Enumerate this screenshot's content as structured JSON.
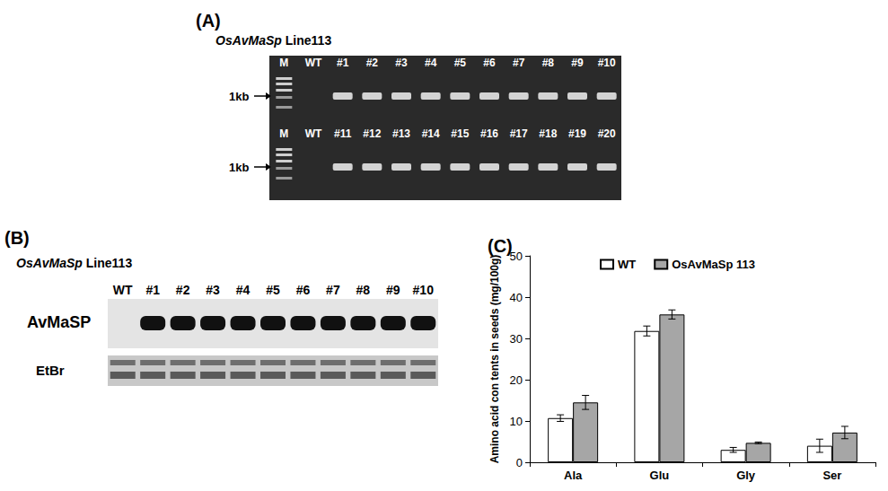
{
  "panels": {
    "a": {
      "label": "(A)",
      "title": "OsAvMaSp Line113",
      "marker_size": "1kb",
      "rows": [
        {
          "lanes": [
            "M",
            "WT",
            "#1",
            "#2",
            "#3",
            "#4",
            "#5",
            "#6",
            "#7",
            "#8",
            "#9",
            "#10"
          ]
        },
        {
          "lanes": [
            "M",
            "WT",
            "#11",
            "#12",
            "#13",
            "#14",
            "#15",
            "#16",
            "#17",
            "#18",
            "#19",
            "#20"
          ]
        }
      ]
    },
    "b": {
      "label": "(B)",
      "title": "OsAvMaSp Line113",
      "lanes": [
        "WT",
        "#1",
        "#2",
        "#3",
        "#4",
        "#5",
        "#6",
        "#7",
        "#8",
        "#9",
        "#10"
      ],
      "rows": [
        "AvMaSP",
        "EtBr"
      ]
    }
  },
  "chart_data": {
    "type": "bar",
    "title": "(C)",
    "y_label": "Amino acid con tents in seeds (mg/100g)",
    "categories": [
      "Ala",
      "Glu",
      "Gly",
      "Ser"
    ],
    "series": [
      {
        "name": "WT",
        "color": "#ffffff",
        "values": [
          10.7,
          31.8,
          3.0,
          4.0
        ],
        "errors": [
          0.8,
          1.2,
          0.6,
          1.6
        ]
      },
      {
        "name": "OsAvMaSp 113",
        "color": "#a6a6a6",
        "values": [
          14.5,
          35.8,
          4.7,
          7.2
        ],
        "errors": [
          1.7,
          1.1,
          0.2,
          1.5
        ]
      }
    ],
    "ylim": [
      0,
      50
    ],
    "yticks": [
      0,
      10,
      20,
      30,
      40,
      50
    ],
    "grid": false,
    "legend": "upper center"
  }
}
